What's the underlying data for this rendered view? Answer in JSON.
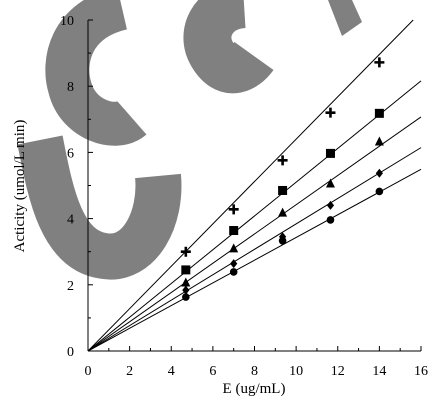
{
  "chart_data": {
    "type": "scatter",
    "title": "",
    "xlabel": "E (ug/mL)",
    "ylabel": "Acticity (umol/L min)",
    "xlim": [
      0,
      16
    ],
    "ylim": [
      0,
      10
    ],
    "xticks": [
      "0",
      "2",
      "4",
      "6",
      "8",
      "10",
      "12",
      "14",
      "16"
    ],
    "yticks": [
      "0",
      "2",
      "4",
      "6",
      "8",
      "10"
    ],
    "grid": false,
    "legend": "none",
    "fit_lines": true,
    "x": [
      4.7,
      7.0,
      9.35,
      11.65,
      14.0
    ],
    "series": [
      {
        "marker": "plus",
        "values": [
          3.0,
          4.28,
          5.76,
          7.2,
          8.72
        ],
        "slope": 0.64
      },
      {
        "marker": "square",
        "values": [
          2.45,
          3.64,
          4.85,
          5.97,
          7.18
        ],
        "slope": 0.51
      },
      {
        "marker": "triangle",
        "values": [
          2.07,
          3.1,
          4.18,
          5.06,
          6.33
        ],
        "slope": 0.442
      },
      {
        "marker": "diamond",
        "values": [
          1.84,
          2.64,
          3.45,
          4.4,
          5.37
        ],
        "slope": 0.384
      },
      {
        "marker": "circle",
        "values": [
          1.63,
          2.39,
          3.33,
          3.96,
          4.82
        ],
        "slope": 0.343
      }
    ],
    "overlay_color": "#808080",
    "ink_color": "#000000"
  }
}
